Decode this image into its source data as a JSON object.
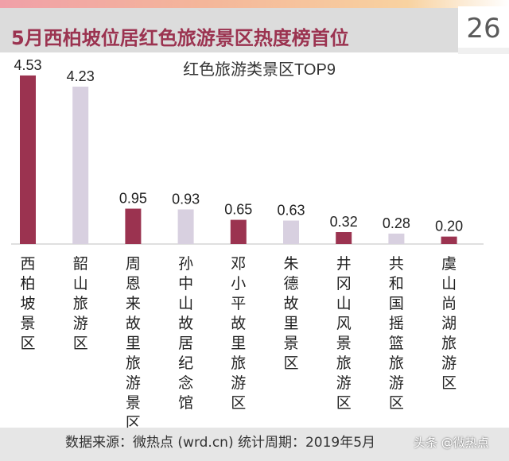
{
  "header": {
    "title": "5月西柏坡位居红色旅游景区热度榜首位",
    "page_number": "26"
  },
  "footer": {
    "source": "数据来源：微热点 (wrd.cn)    统计周期：2019年5月",
    "watermark": "头条 @微热点"
  },
  "colors": {
    "primary": "#9b3350",
    "secondary": "#d8d0e0"
  },
  "chart_data": {
    "type": "bar",
    "title": "红色旅游类景区TOP9",
    "xlabel": "",
    "ylabel": "",
    "ylim": [
      0,
      4.7
    ],
    "categories": [
      "西柏坡景区",
      "韶山旅游区",
      "周恩来故里旅游景区",
      "孙中山故居纪念馆",
      "邓小平故里旅游区",
      "朱德故里景区",
      "井冈山风景旅游区",
      "共和国摇篮旅游区",
      "虞山尚湖旅游区"
    ],
    "values": [
      4.53,
      4.23,
      0.95,
      0.93,
      0.65,
      0.63,
      0.32,
      0.28,
      0.2
    ],
    "value_labels": [
      "4.53",
      "4.23",
      "0.95",
      "0.93",
      "0.65",
      "0.63",
      "0.32",
      "0.28",
      "0.20"
    ],
    "bar_colors": [
      "#9b3350",
      "#d8d0e0",
      "#9b3350",
      "#d8d0e0",
      "#9b3350",
      "#d8d0e0",
      "#9b3350",
      "#d8d0e0",
      "#9b3350"
    ]
  }
}
